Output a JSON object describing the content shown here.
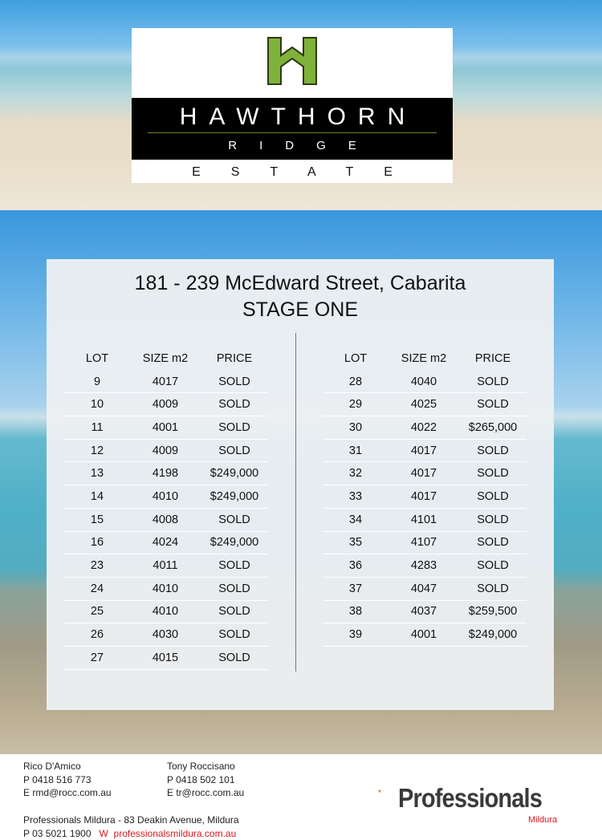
{
  "logo": {
    "name": "HAWTHORN",
    "sub": "RIDGE",
    "estate": "ESTATE",
    "accent": "#7fb23a"
  },
  "heading": {
    "address": "181 - 239 McEdward Street, Cabarita",
    "stage": "STAGE ONE"
  },
  "table": {
    "headers": [
      "LOT",
      "SIZE m2",
      "PRICE"
    ],
    "left": [
      [
        "9",
        "4017",
        "SOLD"
      ],
      [
        "10",
        "4009",
        "SOLD"
      ],
      [
        "11",
        "4001",
        "SOLD"
      ],
      [
        "12",
        "4009",
        "SOLD"
      ],
      [
        "13",
        "4198",
        "$249,000"
      ],
      [
        "14",
        "4010",
        "$249,000"
      ],
      [
        "15",
        "4008",
        "SOLD"
      ],
      [
        "16",
        "4024",
        "$249,000"
      ],
      [
        "23",
        "4011",
        "SOLD"
      ],
      [
        "24",
        "4010",
        "SOLD"
      ],
      [
        "25",
        "4010",
        "SOLD"
      ],
      [
        "26",
        "4030",
        "SOLD"
      ],
      [
        "27",
        "4015",
        "SOLD"
      ]
    ],
    "right": [
      [
        "28",
        "4040",
        "SOLD"
      ],
      [
        "29",
        "4025",
        "SOLD"
      ],
      [
        "30",
        "4022",
        "$265,000"
      ],
      [
        "31",
        "4017",
        "SOLD"
      ],
      [
        "32",
        "4017",
        "SOLD"
      ],
      [
        "33",
        "4017",
        "SOLD"
      ],
      [
        "34",
        "4101",
        "SOLD"
      ],
      [
        "35",
        "4107",
        "SOLD"
      ],
      [
        "36",
        "4283",
        "SOLD"
      ],
      [
        "37",
        "4047",
        "SOLD"
      ],
      [
        "38",
        "4037",
        "$259,500"
      ],
      [
        "39",
        "4001",
        "$249,000"
      ]
    ]
  },
  "footer": {
    "agent1": {
      "name": "Rico D'Amico",
      "phone": "P  0418 516 773",
      "email": "E  rmd@rocc.com.au"
    },
    "agent2": {
      "name": "Tony Roccisano",
      "phone": "P  0418 502 101",
      "email": "E   tr@rocc.com.au"
    },
    "office": "Professionals Mildura - 83 Deakin Avenue, Mildura",
    "office_phone": "P 03 5021 1900",
    "web_label": "W",
    "web": "professionalsmildura.com.au",
    "brand": "Professionals",
    "brand_sub": "Mildura",
    "brand_color": "#d71920"
  }
}
